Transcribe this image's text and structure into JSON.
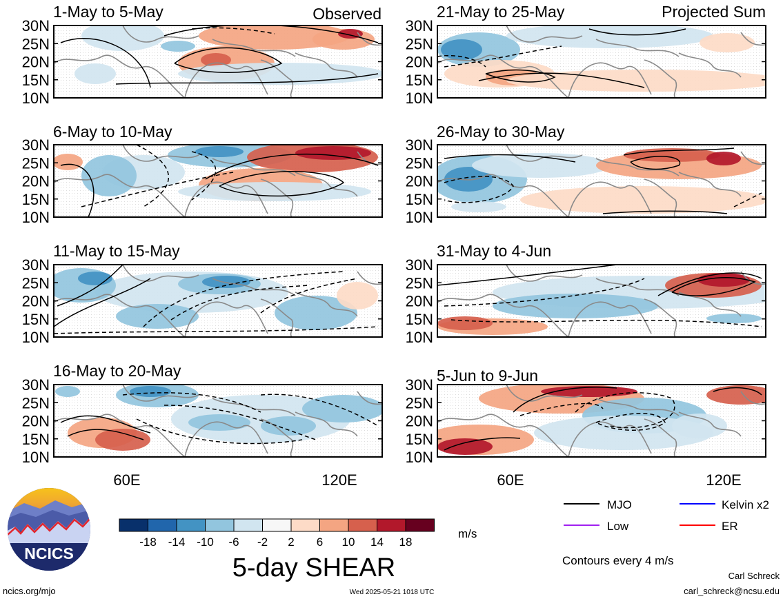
{
  "panels": [
    {
      "title": "1-May to 5-May",
      "tag": "Observed",
      "pattern": 0
    },
    {
      "title": "6-May to 10-May",
      "tag": "",
      "pattern": 1
    },
    {
      "title": "11-May to 15-May",
      "tag": "",
      "pattern": 2
    },
    {
      "title": "16-May to 20-May",
      "tag": "",
      "pattern": 3
    },
    {
      "title": "21-May to 25-May",
      "tag": "Projected Sum",
      "pattern": 4
    },
    {
      "title": "26-May to 30-May",
      "tag": "",
      "pattern": 5
    },
    {
      "title": "31-May to 4-Jun",
      "tag": "",
      "pattern": 6
    },
    {
      "title": "5-Jun to 9-Jun",
      "tag": "",
      "pattern": 7
    }
  ],
  "lat_labels": [
    "30N",
    "25N",
    "20N",
    "15N",
    "10N"
  ],
  "lon_labels": [
    "60E",
    "120E"
  ],
  "colorbar": {
    "colors": [
      "#08306b",
      "#2166ac",
      "#4393c3",
      "#92c5de",
      "#d1e5f0",
      "#f7f7f7",
      "#fddbc7",
      "#f4a582",
      "#d6604d",
      "#b2182b",
      "#67001f"
    ],
    "ticks": [
      "-18",
      "-14",
      "-10",
      "-6",
      "-2",
      "2",
      "6",
      "10",
      "14",
      "18"
    ],
    "units": "m/s",
    "title": "5-day SHEAR"
  },
  "legend": {
    "items": [
      {
        "label": "MJO",
        "color": "#000000"
      },
      {
        "label": "Kelvin x2",
        "color": "#0000ff"
      },
      {
        "label": "Low",
        "color": "#a020f0"
      },
      {
        "label": "ER",
        "color": "#ff0000"
      }
    ],
    "note": "Contours every 4 m/s"
  },
  "logo_text": "NCICS",
  "footer": {
    "url": "ncics.org/mjo",
    "timestamp": "Wed 2025-05-21 1018 UTC",
    "author": "Carl Schreck",
    "email": "carl_schreck@ncsu.edu"
  }
}
